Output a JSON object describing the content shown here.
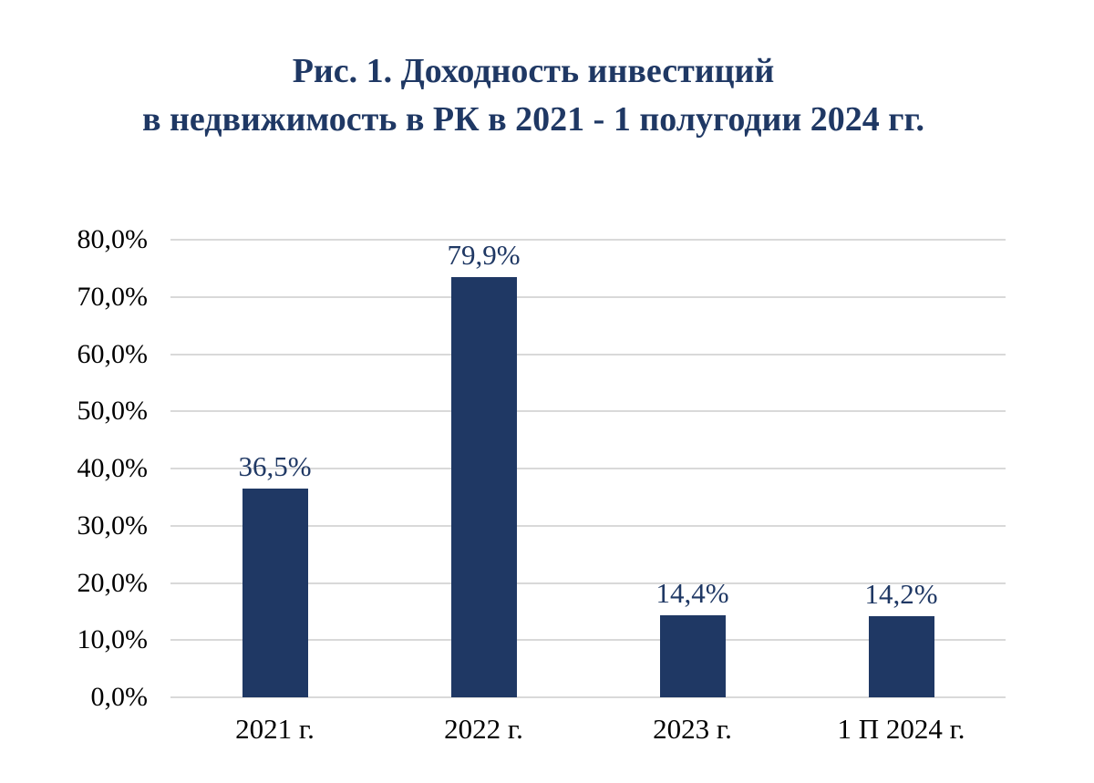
{
  "title": {
    "line1": "Рис. 1. Доходность инвестиций",
    "line2": "в недвижимость в РК в 2021 - 1 полугодии 2024 гг."
  },
  "chart_data": {
    "type": "bar",
    "title": "Рис. 1. Доходность инвестиций в недвижимость в РК в 2021 - 1 полугодии 2024 гг.",
    "categories": [
      "2021 г.",
      "2022 г.",
      "2023 г.",
      "1 П 2024 г."
    ],
    "values": [
      36.5,
      79.9,
      14.4,
      14.2
    ],
    "value_labels": [
      "36,5%",
      "79,9%",
      "14,4%",
      "14,2%"
    ],
    "xlabel": "",
    "ylabel": "",
    "ylim": [
      0,
      80
    ],
    "ytick_step": 10,
    "yticks": [
      {
        "value": 0,
        "label": "0,0%"
      },
      {
        "value": 10,
        "label": "10,0%"
      },
      {
        "value": 20,
        "label": "20,0%"
      },
      {
        "value": 30,
        "label": "30,0%"
      },
      {
        "value": 40,
        "label": "40,0%"
      },
      {
        "value": 50,
        "label": "50,0%"
      },
      {
        "value": 60,
        "label": "60,0%"
      },
      {
        "value": 70,
        "label": "70,0%"
      },
      {
        "value": 80,
        "label": "80,0%"
      }
    ],
    "grid": "horizontal",
    "legend": "none",
    "colors": {
      "bar": "#1F3864",
      "title": "#1F3864",
      "value_label": "#1F3864",
      "axis_text": "#000000",
      "gridline": "#D9D9D9",
      "background": "#FFFFFF"
    }
  }
}
